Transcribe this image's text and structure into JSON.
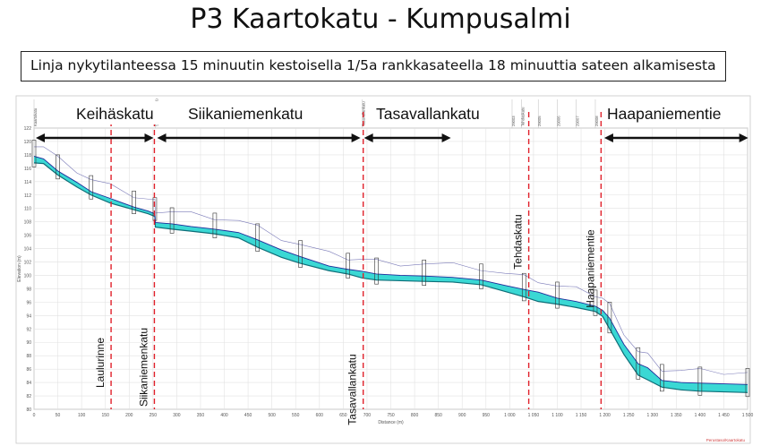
{
  "title": "P3 Kaartokatu - Kumpusalmi",
  "caption": "Linja nykytilanteessa 15 minuutin kestoisella 1/5a rankkasateella 18 minuuttia sateen alkamisesta",
  "chart_data": {
    "type": "line",
    "xlabel": "Distance (m)",
    "ylabel": "Elevation (m)",
    "xlim": [
      0,
      1500
    ],
    "ylim": [
      80,
      122
    ],
    "x_ticks": [
      "0",
      "50",
      "100",
      "150",
      "200",
      "250",
      "300",
      "350",
      "400",
      "450",
      "500",
      "550",
      "600",
      "650",
      "700",
      "750",
      "800",
      "850",
      "900",
      "950",
      "1 000",
      "1 050",
      "1 100",
      "1 150",
      "1 200",
      "1 250",
      "1 300",
      "1 350",
      "1 400",
      "1 450",
      "1 500"
    ],
    "y_ticks": [
      "80",
      "82",
      "84",
      "86",
      "88",
      "90",
      "92",
      "94",
      "96",
      "98",
      "100",
      "102",
      "104",
      "106",
      "108",
      "110",
      "112",
      "114",
      "116",
      "118",
      "120",
      "122"
    ],
    "grid": true,
    "streets": [
      {
        "label": "Keihäskatu",
        "x_start": 0,
        "x_end": 255
      },
      {
        "label": "Siikaniemenkatu",
        "x_start": 255,
        "x_end": 690
      },
      {
        "label": "Tasavallankatu",
        "x_start": 690,
        "x_end": 880
      },
      {
        "label": "Haapaniementie",
        "x_start": 1195,
        "x_end": 1505
      }
    ],
    "cross_streets": [
      {
        "label": "Laulurinne",
        "x": 162
      },
      {
        "label": "Siikaniemenkatu",
        "x": 253
      },
      {
        "label": "Tasavallankatu",
        "x": 692
      },
      {
        "label": "Tehdaskatu",
        "x": 1040
      },
      {
        "label": "Haapaniementie",
        "x": 1192
      }
    ],
    "series": [
      {
        "x": [
          0,
          20,
          50,
          90,
          120,
          160,
          210,
          240,
          254,
          255,
          290,
          330,
          380,
          430,
          470,
          520,
          560,
          620,
          660,
          690,
          720,
          770,
          820,
          880,
          940,
          990,
          1030,
          1060,
          1100,
          1140,
          1180,
          1195,
          1210,
          1240,
          1270,
          1290,
          1320,
          1360,
          1400,
          1450,
          1500
        ],
        "ground": [
          116.8,
          116.7,
          115.0,
          113.2,
          112.0,
          110.8,
          109.8,
          109.2,
          108.8,
          107.2,
          106.9,
          106.6,
          106.2,
          105.6,
          104.2,
          102.7,
          101.8,
          100.7,
          100.2,
          99.6,
          99.3,
          99.2,
          99.1,
          99.0,
          98.6,
          97.6,
          96.8,
          96.1,
          95.7,
          95.2,
          94.6,
          93.9,
          92.0,
          88.2,
          85.1,
          84.4,
          83.3,
          82.9,
          82.7,
          82.6,
          82.5
        ],
        "hgl": [
          117.8,
          117.4,
          115.6,
          113.9,
          112.5,
          111.5,
          110.2,
          109.6,
          109.2,
          107.9,
          107.7,
          107.3,
          106.9,
          106.4,
          105.3,
          103.8,
          102.8,
          101.4,
          100.9,
          100.6,
          100.2,
          100.0,
          99.9,
          99.7,
          99.3,
          98.5,
          97.9,
          97.5,
          96.6,
          96.1,
          95.4,
          94.8,
          93.6,
          89.7,
          86.8,
          86.2,
          84.3,
          84.0,
          83.9,
          83.8,
          83.7
        ]
      }
    ]
  },
  "figure_labels": {
    "axis_top_labels": [
      "Kaartokatu",
      "Siikaniemenkatu",
      "Tasavallankatu",
      "29003",
      "Tehdaskatu",
      "29005",
      "29006",
      "29007",
      "29008"
    ],
    "watermark": "Perustaso/Kaartokatu"
  }
}
